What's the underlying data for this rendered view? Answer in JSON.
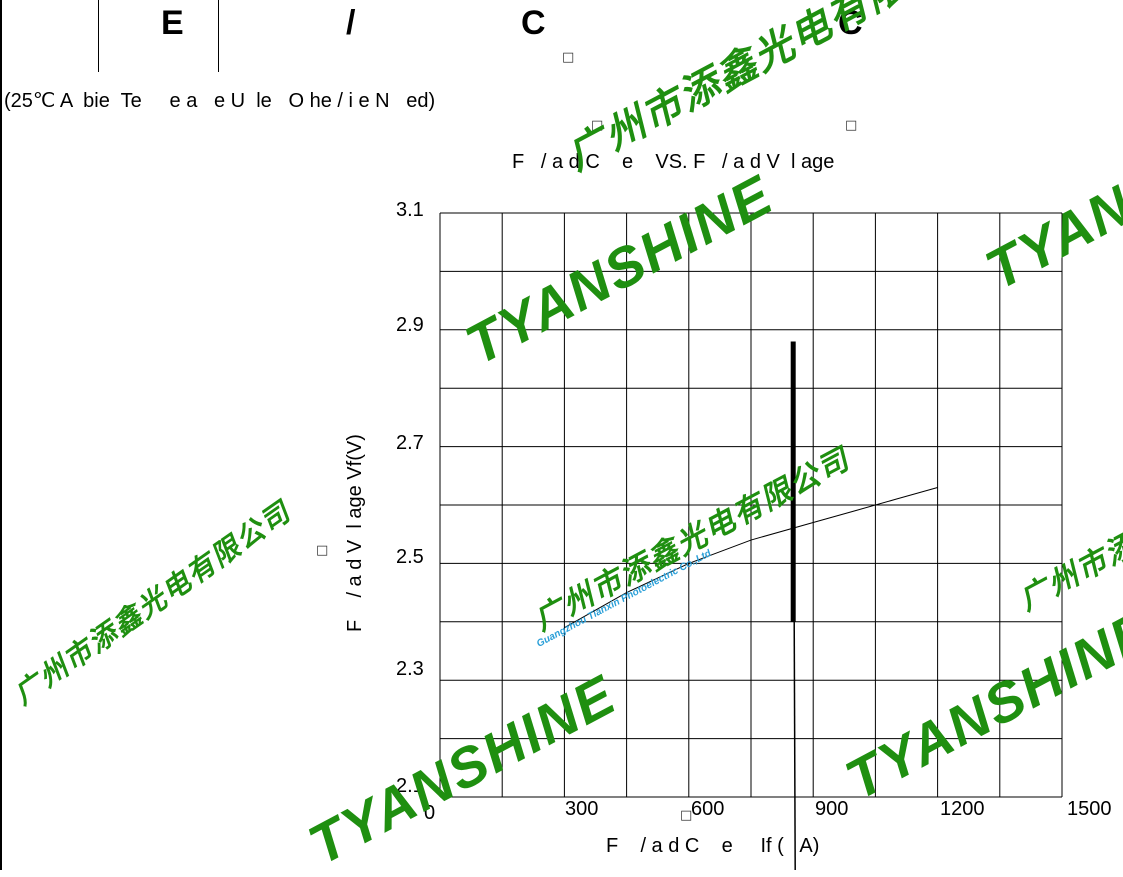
{
  "header": {
    "col1": "E",
    "col2": "/",
    "col3": "C",
    "col4": "C",
    "box_glyph": "□"
  },
  "subtitle": "(25℃ A  bie  Te     e a   e U  le   O he / i e N   ed)",
  "chart_data": {
    "type": "line",
    "title": "F   / a d C    e    VS. F   / a d V  l age",
    "xlabel": "F    / a d C    e     If (   A)",
    "ylabel": "F    / a d V  l age Vf(V)",
    "xlim": [
      0,
      1500
    ],
    "ylim": [
      2.1,
      3.1
    ],
    "x_ticks": [
      "0",
      "300",
      "600",
      "900",
      "1200",
      "1500"
    ],
    "y_ticks": [
      "2.1",
      "2.3",
      "2.5",
      "2.7",
      "2.9",
      "3.1"
    ],
    "grid": true,
    "series": [
      {
        "x": [
          300,
          450,
          600,
          750,
          900,
          1000,
          1100,
          1200
        ],
        "y": [
          2.39,
          2.45,
          2.5,
          2.54,
          2.57,
          2.59,
          2.61,
          2.63
        ]
      }
    ]
  },
  "watermark": {
    "brand": "TYANSHINE",
    "company_cn": "广州市添鑫光电有限公司",
    "company_en": "Guangzhou Tianxin Photoelectric Co.,Ltd"
  }
}
